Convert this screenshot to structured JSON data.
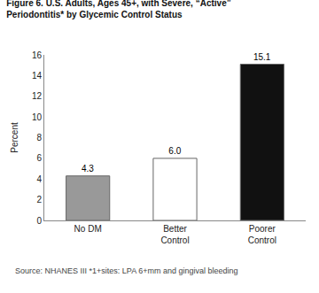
{
  "chart_data": {
    "type": "bar",
    "title": "Figure 6. U.S. Adults, Ages 45+, with Severe, “Active”\nPeriodontitis* by Glycemic Control Status",
    "categories": [
      "No DM",
      "Better\nControl",
      "Poorer\nControl"
    ],
    "values": [
      4.3,
      6.0,
      15.1
    ],
    "value_labels": [
      "4.3",
      "6.0",
      "15.1"
    ],
    "data_labels": true,
    "colors": [
      "#999999",
      "#ffffff",
      "#111111"
    ],
    "ylabel": "Percent",
    "ylim": [
      0,
      16
    ],
    "yticks": [
      0,
      2,
      4,
      6,
      8,
      10,
      12,
      14,
      16
    ],
    "grid": false,
    "annotations": [
      "Source: NHANES III *1+sites: LPA 6+mm and gingival bleeding"
    ]
  }
}
